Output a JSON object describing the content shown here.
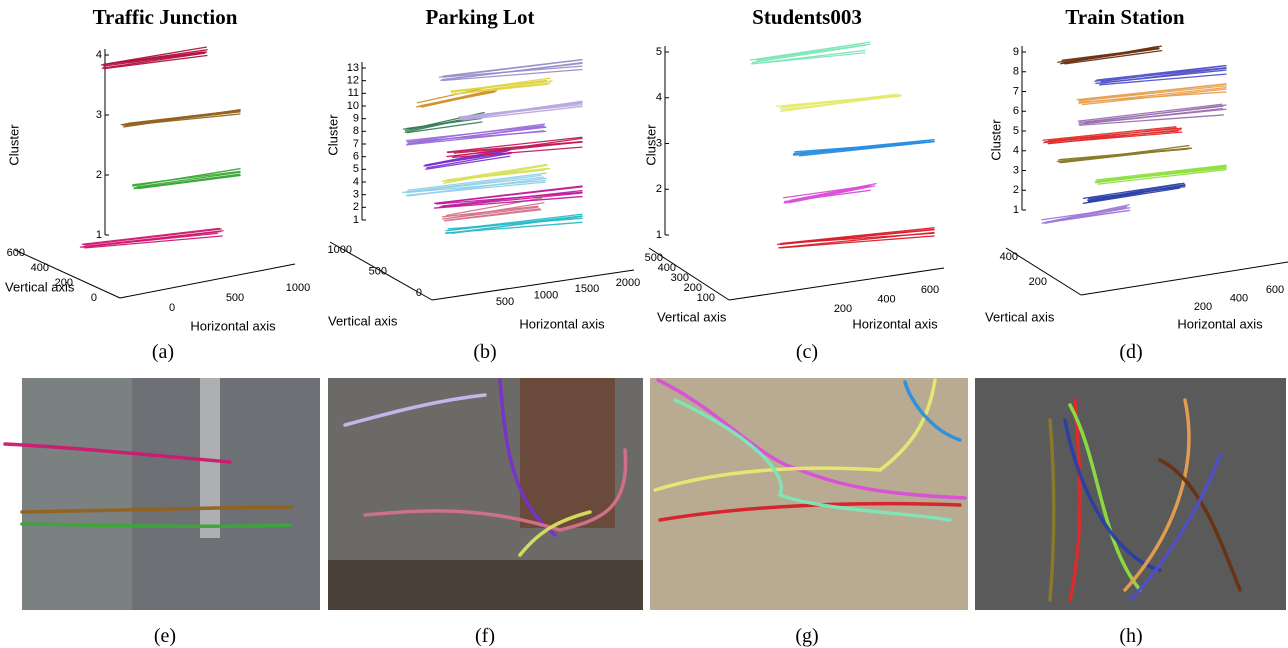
{
  "figure": {
    "panels": [
      {
        "title": "Traffic Junction",
        "cluster_label": "Cluster",
        "horizontal_label": "Horizontal axis",
        "vertical_label": "Vertical axis",
        "cluster_ticks": [
          1,
          2,
          3,
          4
        ],
        "horizontal_ticks": [
          0,
          500,
          1000
        ],
        "vertical_ticks": [
          0,
          200,
          400,
          600
        ],
        "caption": "(a)",
        "colors": [
          "#d0186f",
          "#3aa637",
          "#94621c",
          "#b0103e"
        ]
      },
      {
        "title": "Parking Lot",
        "cluster_label": "Cluster",
        "horizontal_label": "Horizontal axis",
        "vertical_label": "Vertical axis",
        "cluster_ticks": [
          1,
          2,
          3,
          4,
          5,
          6,
          7,
          8,
          9,
          10,
          11,
          12,
          13
        ],
        "horizontal_ticks": [
          500,
          1000,
          1500,
          2000
        ],
        "vertical_ticks": [
          0,
          500,
          1000
        ],
        "caption": "(b)",
        "colors": [
          "#2bbcc8",
          "#d4728a",
          "#c01a9a",
          "#8fd0e8",
          "#d7e25c",
          "#7a2fd0",
          "#c21a5a",
          "#9a6dd8",
          "#3a7d5a",
          "#b8a8e0",
          "#d4912e",
          "#e0d440",
          "#9a8ec8"
        ]
      },
      {
        "title": "Students003",
        "cluster_label": "Cluster",
        "horizontal_label": "Horizontal axis",
        "vertical_label": "Vertical axis",
        "cluster_ticks": [
          1,
          2,
          3,
          4,
          5
        ],
        "horizontal_ticks": [
          200,
          400,
          600
        ],
        "vertical_ticks": [
          100,
          200,
          300,
          400,
          500
        ],
        "caption": "(c)",
        "colors": [
          "#d81e2a",
          "#d94fd9",
          "#2a8ee0",
          "#e6ea70",
          "#7ee6b8"
        ]
      },
      {
        "title": "Train Station",
        "cluster_label": "Cluster",
        "horizontal_label": "Horizontal axis",
        "vertical_label": "Vertical axis",
        "cluster_ticks": [
          1,
          2,
          3,
          4,
          5,
          6,
          7,
          8,
          9
        ],
        "horizontal_ticks": [
          200,
          400,
          600
        ],
        "vertical_ticks": [
          200,
          400
        ],
        "caption": "(d)",
        "colors": [
          "#a07ad8",
          "#2a3fa8",
          "#8ee040",
          "#8a7a2a",
          "#e02a2a",
          "#9a70b0",
          "#e8a050",
          "#5050c8",
          "#6a3010"
        ]
      }
    ],
    "photos": [
      {
        "caption": "(e)"
      },
      {
        "caption": "(f)"
      },
      {
        "caption": "(g)"
      },
      {
        "caption": "(h)"
      }
    ]
  }
}
